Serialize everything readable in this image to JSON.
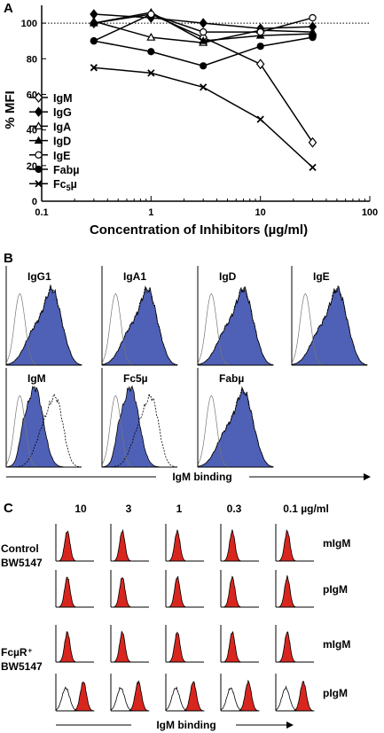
{
  "panel_labels": {
    "a": "A",
    "b": "B",
    "c": "C"
  },
  "chart_data": [
    {
      "panel": "A",
      "type": "line",
      "xlabel": "Concentration of Inhibitors (µg/ml)",
      "ylabel": "% MFI",
      "x_scale": "log",
      "xlim": [
        0.1,
        100
      ],
      "ylim": [
        0,
        110
      ],
      "x_ticks": [
        "0.1",
        "1",
        "10",
        "100"
      ],
      "y_ticks": [
        "0",
        "20",
        "40",
        "60",
        "80",
        "100"
      ],
      "reference_line": {
        "y": 100,
        "style": "dotted"
      },
      "legend_position": "bottom-left",
      "grid": false,
      "series": [
        {
          "name": "IgM",
          "marker": "diamond-open",
          "x": [
            0.3,
            1,
            3,
            10,
            30
          ],
          "y": [
            100,
            105,
            92,
            77,
            33
          ]
        },
        {
          "name": "IgG",
          "marker": "diamond-filled",
          "x": [
            0.3,
            1,
            3,
            10,
            30
          ],
          "y": [
            105,
            103,
            100,
            97,
            98
          ]
        },
        {
          "name": "IgA",
          "marker": "triangle-open",
          "x": [
            0.3,
            1,
            3,
            10,
            30
          ],
          "y": [
            101,
            92,
            89,
            96,
            95
          ]
        },
        {
          "name": "IgD",
          "marker": "triangle-filled",
          "x": [
            0.3,
            1,
            3,
            10,
            30
          ],
          "y": [
            100,
            106,
            90,
            93,
            94
          ]
        },
        {
          "name": "IgE",
          "marker": "circle-open",
          "x": [
            0.3,
            1,
            3,
            10,
            30
          ],
          "y": [
            90,
            105,
            95,
            95,
            103
          ]
        },
        {
          "name": "Fabµ",
          "marker": "circle-filled",
          "x": [
            0.3,
            1,
            3,
            10,
            30
          ],
          "y": [
            90,
            84,
            76,
            87,
            92
          ]
        },
        {
          "name": "Fc5µ",
          "legend_label_main": "Fc",
          "legend_label_sub": "5",
          "legend_label_tail": "µ",
          "marker": "x",
          "x": [
            0.3,
            1,
            3,
            10,
            30
          ],
          "y": [
            75,
            72,
            64,
            46,
            19
          ]
        }
      ]
    },
    {
      "panel": "B",
      "type": "histogram",
      "axis_label": "IgM binding",
      "fill_color": "#4f60b7",
      "plots": [
        {
          "label": "IgG1",
          "shifted": false
        },
        {
          "label": "IgA1",
          "shifted": false
        },
        {
          "label": "IgD",
          "shifted": false
        },
        {
          "label": "IgE",
          "shifted": false
        },
        {
          "label": "IgM",
          "shifted": true
        },
        {
          "label": "Fc5µ",
          "shifted": true
        },
        {
          "label": "Fabµ",
          "shifted": false
        }
      ]
    },
    {
      "panel": "C",
      "type": "histogram",
      "axis_label": "IgM binding",
      "fill_color": "#d8261f",
      "columns": [
        "10",
        "3",
        "1",
        "0.3",
        "0.1 µg/ml"
      ],
      "groups": [
        {
          "cell_line_1": "Control",
          "cell_line_2": "BW5147",
          "rows": [
            {
              "label": "mIgM",
              "shifted": [
                false,
                false,
                false,
                false,
                false
              ]
            },
            {
              "label": "pIgM",
              "shifted": [
                false,
                false,
                false,
                false,
                false
              ]
            }
          ]
        },
        {
          "cell_line_1": "FcµR⁺",
          "cell_line_2": "BW5147",
          "rows": [
            {
              "label": "mIgM",
              "shifted": [
                false,
                false,
                false,
                false,
                false
              ]
            },
            {
              "label": "pIgM",
              "shifted": [
                true,
                true,
                true,
                true,
                true
              ]
            }
          ]
        }
      ]
    }
  ]
}
